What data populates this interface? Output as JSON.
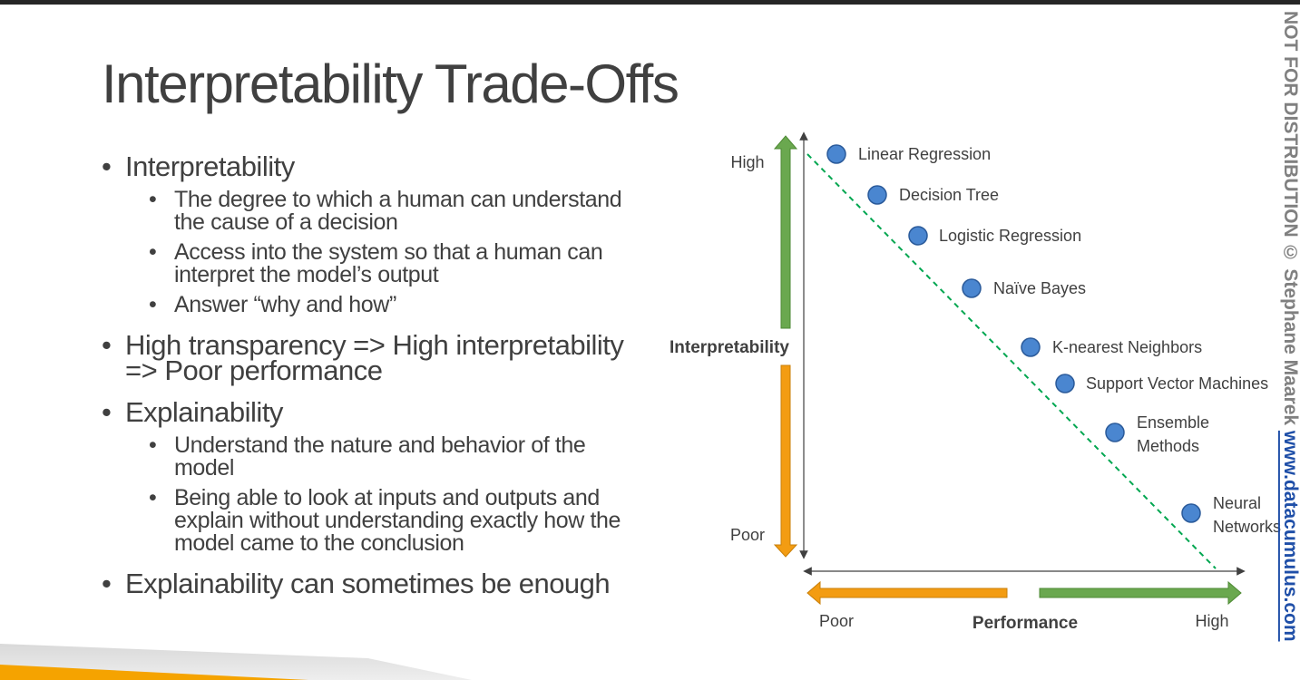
{
  "title": "Interpretability Trade-Offs",
  "bullets": {
    "interpretability": {
      "label": "Interpretability",
      "items": [
        "The degree to which a human can understand the cause of a decision",
        "Access into the system so that a human can interpret the model’s output",
        "Answer “why and how”"
      ]
    },
    "transparency": "High transparency => High interpretability => Poor performance",
    "explainability": {
      "label": "Explainability",
      "items": [
        "Understand the nature and behavior of the model",
        "Being able to look at inputs and outputs and explain without understanding exactly how the model came to the conclusion"
      ]
    },
    "enough": "Explainability can sometimes be enough"
  },
  "diagram": {
    "y_axis_label": "Interpretability",
    "y_high": "High",
    "y_poor": "Poor",
    "x_axis_label": "Performance",
    "x_poor": "Poor",
    "x_high": "High",
    "models": [
      {
        "name": "Linear Regression",
        "rank": 1
      },
      {
        "name": "Decision Tree",
        "rank": 2
      },
      {
        "name": "Logistic Regression",
        "rank": 3
      },
      {
        "name": "Naïve Bayes",
        "rank": 4
      },
      {
        "name": "K-nearest Neighbors",
        "rank": 5
      },
      {
        "name": "Support Vector Machines",
        "rank": 6
      },
      {
        "name": "Ensemble Methods",
        "rank": 7
      },
      {
        "name": "Neural Networks",
        "rank": 8
      }
    ],
    "colors": {
      "point": "#4a86d0",
      "point_stroke": "#2a5a9a",
      "up_arrow": "#6aa84f",
      "down_arrow": "#f39c12",
      "trend_line": "#00a650"
    }
  },
  "watermark": {
    "text": "NOT FOR DISTRIBUTION © Stephane Maarek ",
    "url": "www.datacumulus.com"
  }
}
